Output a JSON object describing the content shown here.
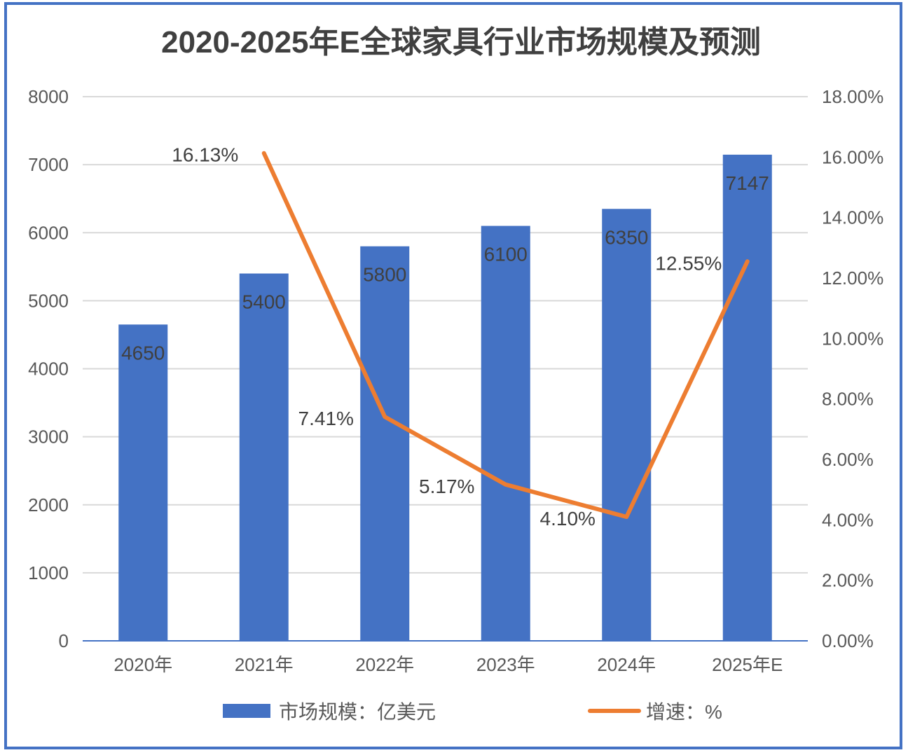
{
  "chart_data": {
    "type": "bar+line",
    "title": "2020-2025年E全球家具行业市场规模及预测",
    "categories": [
      "2020年",
      "2021年",
      "2022年",
      "2023年",
      "2024年",
      "2025年E"
    ],
    "series": [
      {
        "name": "市场规模：亿美元",
        "type": "bar",
        "axis": "left",
        "color": "#4472C4",
        "values": [
          4650,
          5400,
          5800,
          6100,
          6350,
          7147
        ],
        "labels": [
          "4650",
          "5400",
          "5800",
          "6100",
          "6350",
          "7147"
        ]
      },
      {
        "name": "增速：%",
        "type": "line",
        "axis": "right",
        "color": "#ED7D31",
        "values": [
          null,
          16.13,
          7.41,
          5.17,
          4.1,
          12.55
        ],
        "labels": [
          "",
          "16.13%",
          "7.41%",
          "5.17%",
          "4.10%",
          "12.55%"
        ]
      }
    ],
    "y_left": {
      "lim": [
        0,
        8000
      ],
      "ticks": [
        "0",
        "1000",
        "2000",
        "3000",
        "4000",
        "5000",
        "6000",
        "7000",
        "8000"
      ]
    },
    "y_right": {
      "lim": [
        0,
        18
      ],
      "ticks": [
        "0.00%",
        "2.00%",
        "4.00%",
        "6.00%",
        "8.00%",
        "10.00%",
        "12.00%",
        "14.00%",
        "16.00%",
        "18.00%"
      ]
    },
    "grid": true,
    "legend": "bottom"
  }
}
